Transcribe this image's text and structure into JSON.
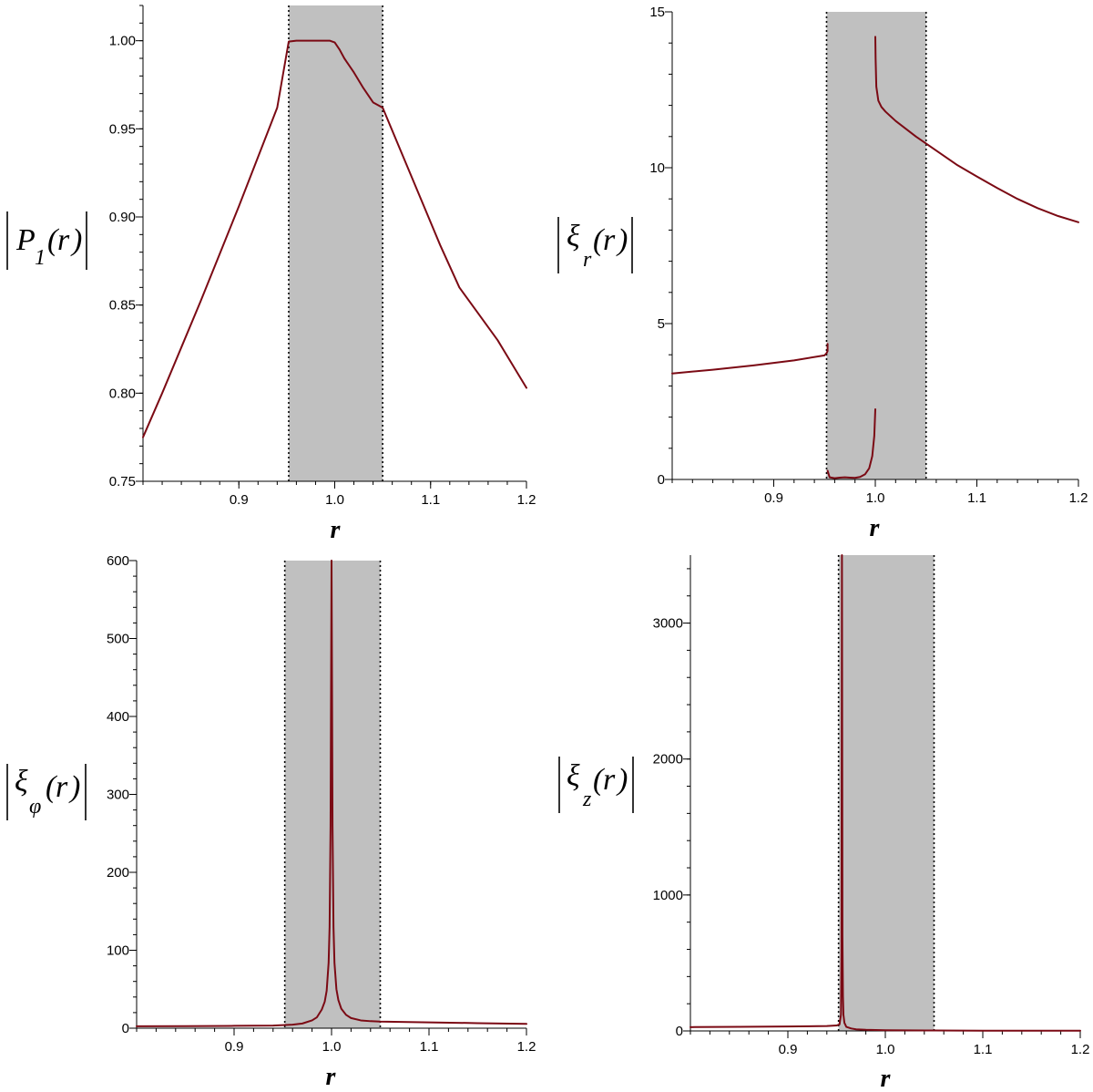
{
  "chart_data": [
    {
      "type": "line",
      "xlabel": "r",
      "ylabel": {
        "symbol": "P",
        "subscript": "1",
        "argument": "r"
      },
      "xlim": [
        0.8,
        1.2
      ],
      "ylim": [
        0.75,
        1.02
      ],
      "xticks": [
        "0.9",
        "1.0",
        "1.1",
        "1.2"
      ],
      "yticks": [
        "0.75",
        "0.80",
        "0.85",
        "0.90",
        "0.95",
        "1.00"
      ],
      "shaded_band": [
        0.952,
        1.05
      ],
      "color": "#7b0a14",
      "segments": [
        {
          "x": [
            0.8,
            0.82,
            0.84,
            0.86,
            0.88,
            0.9,
            0.92,
            0.94,
            0.952,
            0.96,
            0.98,
            0.995,
            1.0,
            1.005,
            1.01,
            1.02,
            1.03,
            1.04,
            1.05,
            1.07,
            1.09,
            1.11,
            1.13,
            1.15,
            1.17,
            1.19,
            1.2
          ],
          "y": [
            0.775,
            0.8,
            0.826,
            0.852,
            0.879,
            0.906,
            0.934,
            0.962,
            0.9995,
            1.0,
            1.0,
            1.0,
            0.999,
            0.995,
            0.99,
            0.982,
            0.973,
            0.965,
            0.962,
            0.936,
            0.91,
            0.884,
            0.86,
            0.845,
            0.83,
            0.812,
            0.803
          ]
        }
      ]
    },
    {
      "type": "line",
      "xlabel": "r",
      "ylabel": {
        "symbol": "ξ",
        "subscript": "r",
        "argument": "r"
      },
      "xlim": [
        0.8,
        1.2
      ],
      "ylim": [
        0,
        15
      ],
      "xticks": [
        "0.9",
        "1.0",
        "1.1",
        "1.2"
      ],
      "yticks": [
        "0",
        "5",
        "10",
        "15"
      ],
      "shaded_band": [
        0.952,
        1.05
      ],
      "color": "#7b0a14",
      "segments": [
        {
          "x": [
            0.8,
            0.84,
            0.88,
            0.92,
            0.95,
            0.952,
            0.953,
            0.953
          ],
          "y": [
            3.4,
            3.52,
            3.66,
            3.82,
            3.98,
            4.05,
            4.12,
            4.35
          ]
        },
        {
          "x": [
            0.953,
            0.955,
            0.96,
            0.965,
            0.97,
            0.975,
            0.98,
            0.985,
            0.99,
            0.994,
            0.997,
            0.999,
            1.0
          ],
          "y": [
            0.28,
            0.07,
            0.04,
            0.06,
            0.07,
            0.06,
            0.05,
            0.08,
            0.17,
            0.36,
            0.75,
            1.4,
            2.25
          ]
        },
        {
          "x": [
            1.0,
            1.0003,
            1.001,
            1.003,
            1.006,
            1.01,
            1.02,
            1.04,
            1.06,
            1.08,
            1.1,
            1.12,
            1.14,
            1.16,
            1.18,
            1.2
          ],
          "y": [
            14.2,
            13.5,
            12.6,
            12.15,
            11.95,
            11.8,
            11.5,
            11.0,
            10.55,
            10.1,
            9.72,
            9.35,
            9.0,
            8.7,
            8.45,
            8.25
          ]
        }
      ]
    },
    {
      "type": "line",
      "xlabel": "r",
      "ylabel": {
        "symbol": "ξ",
        "subscript": "φ",
        "argument": "r"
      },
      "xlim": [
        0.8,
        1.2
      ],
      "ylim": [
        0,
        600
      ],
      "xticks": [
        "0.9",
        "1.0",
        "1.1",
        "1.2"
      ],
      "yticks": [
        "0",
        "100",
        "200",
        "300",
        "400",
        "500",
        "600"
      ],
      "shaded_band": [
        0.952,
        1.05
      ],
      "color": "#7b0a14",
      "segments": [
        {
          "x": [
            0.8,
            0.85,
            0.9,
            0.94,
            0.96,
            0.97,
            0.98,
            0.985,
            0.99,
            0.993,
            0.995,
            0.997,
            0.998,
            0.999,
            0.9995,
            1.0,
            1.0005,
            1.001,
            1.002,
            1.003,
            1.005,
            1.007,
            1.01,
            1.015,
            1.02,
            1.03,
            1.04,
            1.05,
            1.1,
            1.15,
            1.2
          ],
          "y": [
            2.5,
            2.7,
            3.0,
            3.3,
            4.5,
            6,
            10,
            14,
            24,
            34,
            48,
            84,
            130,
            260,
            440,
            610,
            440,
            260,
            130,
            84,
            50,
            36,
            25,
            17,
            13,
            10,
            9,
            8.5,
            7.5,
            6.5,
            5.5
          ]
        }
      ]
    },
    {
      "type": "line",
      "xlabel": "r",
      "ylabel": {
        "symbol": "ξ",
        "subscript": "z",
        "argument": "r"
      },
      "xlim": [
        0.8,
        1.2
      ],
      "ylim": [
        0,
        3500
      ],
      "xticks": [
        "0.9",
        "1.0",
        "1.1",
        "1.2"
      ],
      "yticks": [
        "0",
        "1000",
        "2000",
        "3000"
      ],
      "shaded_band": [
        0.952,
        1.05
      ],
      "color": "#7b0a14",
      "segments": [
        {
          "x": [
            0.8,
            0.85,
            0.9,
            0.94,
            0.95,
            0.953,
            0.9545,
            0.955,
            0.9555,
            0.956,
            0.9565,
            0.957,
            0.958,
            0.96,
            0.965,
            0.97,
            0.98,
            1.0,
            1.05,
            1.1,
            1.2
          ],
          "y": [
            28,
            30,
            33,
            36,
            40,
            48,
            120,
            600,
            3500,
            700,
            260,
            120,
            60,
            30,
            18,
            12,
            8,
            5,
            3,
            2,
            2
          ]
        }
      ]
    }
  ]
}
